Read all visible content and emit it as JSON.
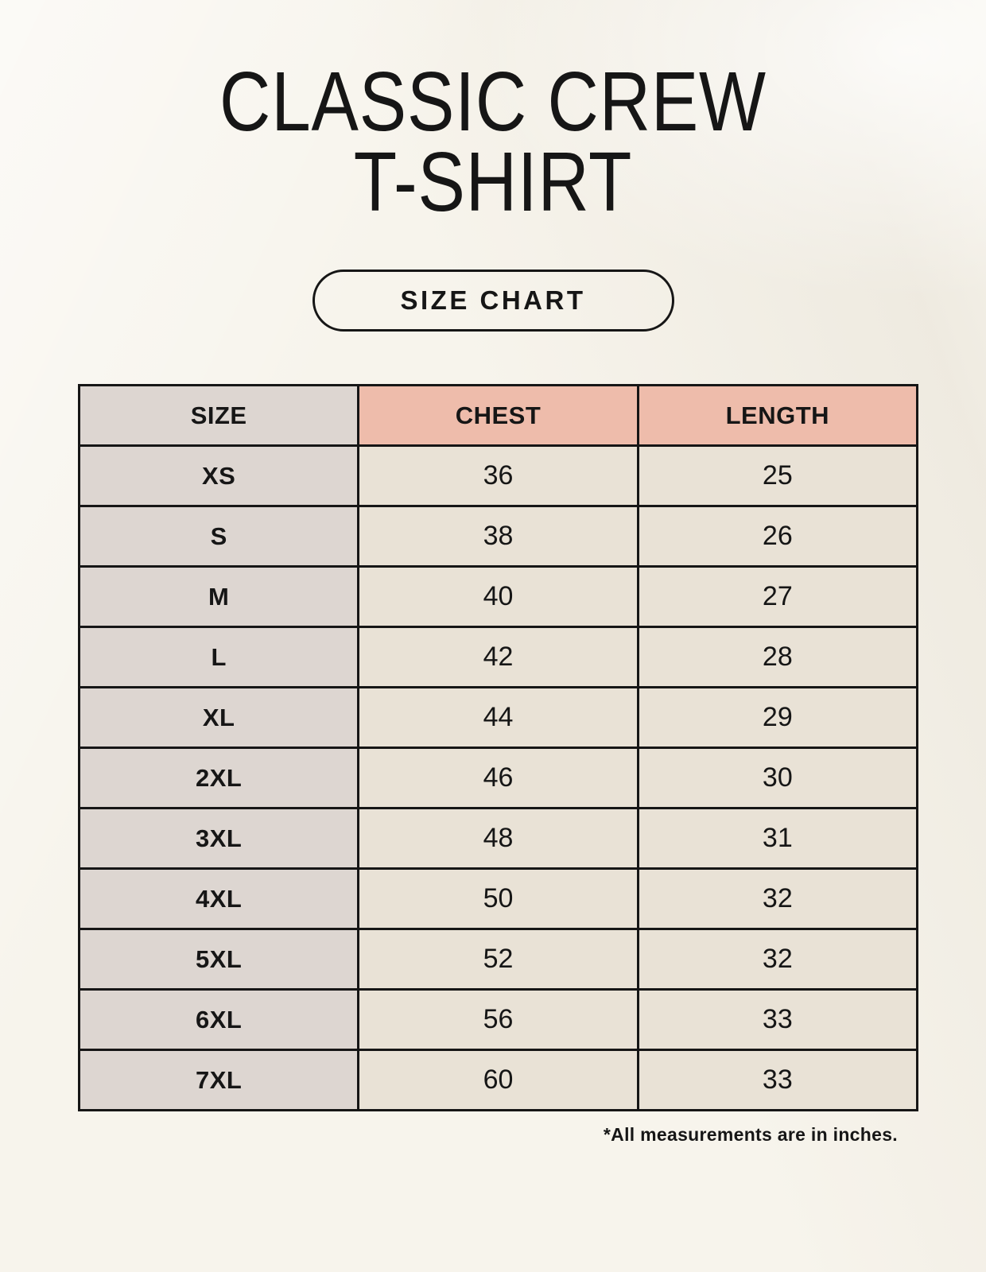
{
  "page": {
    "title": "CLASSIC CREW T-SHIRT",
    "badge_label": "SIZE CHART",
    "footnote": "*All measurements are in inches."
  },
  "colors": {
    "page_background": "#f7f4ec",
    "size_column_background": "#ddd6d1",
    "header_accent_background": "#eebcab",
    "value_cell_background": "#e9e2d6",
    "border": "#161616",
    "text": "#161616"
  },
  "size_table": {
    "columns": [
      "SIZE",
      "CHEST",
      "LENGTH"
    ],
    "rows": [
      {
        "size": "XS",
        "chest": "36",
        "length": "25"
      },
      {
        "size": "S",
        "chest": "38",
        "length": "26"
      },
      {
        "size": "M",
        "chest": "40",
        "length": "27"
      },
      {
        "size": "L",
        "chest": "42",
        "length": "28"
      },
      {
        "size": "XL",
        "chest": "44",
        "length": "29"
      },
      {
        "size": "2XL",
        "chest": "46",
        "length": "30"
      },
      {
        "size": "3XL",
        "chest": "48",
        "length": "31"
      },
      {
        "size": "4XL",
        "chest": "50",
        "length": "32"
      },
      {
        "size": "5XL",
        "chest": "52",
        "length": "32"
      },
      {
        "size": "6XL",
        "chest": "56",
        "length": "33"
      },
      {
        "size": "7XL",
        "chest": "60",
        "length": "33"
      }
    ]
  }
}
